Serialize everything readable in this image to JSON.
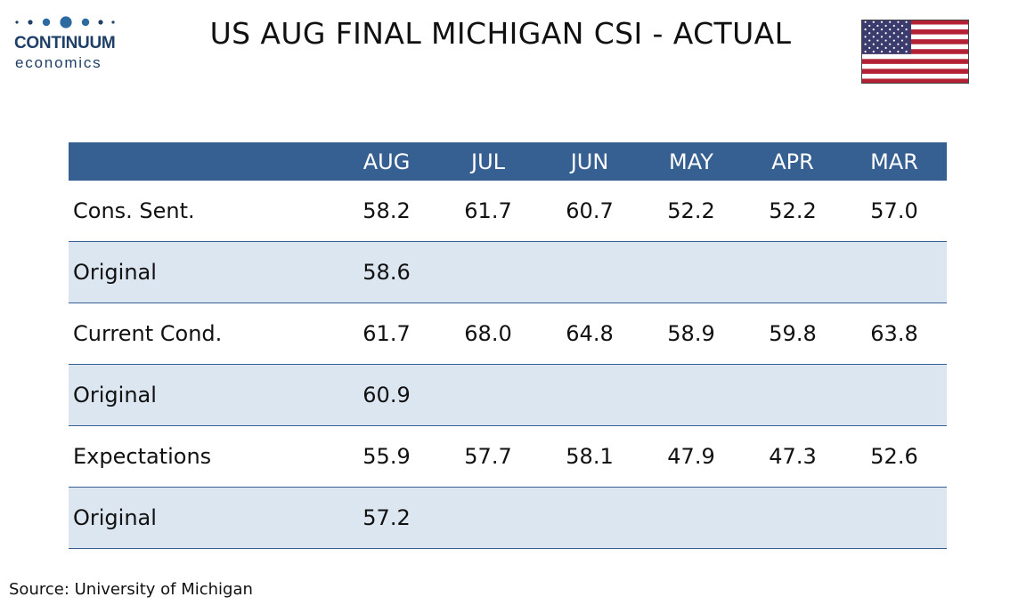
{
  "logo": {
    "wordmark": "CONTINUUM",
    "subtitle": "economics",
    "brand_color": "#1f3f66",
    "icon": "continuum-dots-icon"
  },
  "title": "US AUG FINAL MICHIGAN CSI - ACTUAL",
  "flag": {
    "icon": "us-flag-icon",
    "colors": [
      "#b22234",
      "#ffffff",
      "#3c3b6e"
    ]
  },
  "colors": {
    "header_bg": "#365f92",
    "alt_row_bg": "#dce6f1",
    "header_text": "#ffffff"
  },
  "chart_data": {
    "type": "table",
    "columns": [
      "",
      "AUG",
      "JUL",
      "JUN",
      "MAY",
      "APR",
      "MAR"
    ],
    "rows": [
      {
        "label": "Cons. Sent.",
        "values": [
          "58.2",
          "61.7",
          "60.7",
          "52.2",
          "52.2",
          "57.0"
        ]
      },
      {
        "label": "Original",
        "values": [
          "58.6",
          "",
          "",
          "",
          "",
          ""
        ]
      },
      {
        "label": "Current Cond.",
        "values": [
          "61.7",
          "68.0",
          "64.8",
          "58.9",
          "59.8",
          "63.8"
        ]
      },
      {
        "label": "Original",
        "values": [
          "60.9",
          "",
          "",
          "",
          "",
          ""
        ]
      },
      {
        "label": "Expectations",
        "values": [
          "55.9",
          "57.7",
          "58.1",
          "47.9",
          "47.3",
          "52.6"
        ]
      },
      {
        "label": "Original",
        "values": [
          "57.2",
          "",
          "",
          "",
          "",
          ""
        ]
      }
    ]
  },
  "source": "Source: University of Michigan"
}
